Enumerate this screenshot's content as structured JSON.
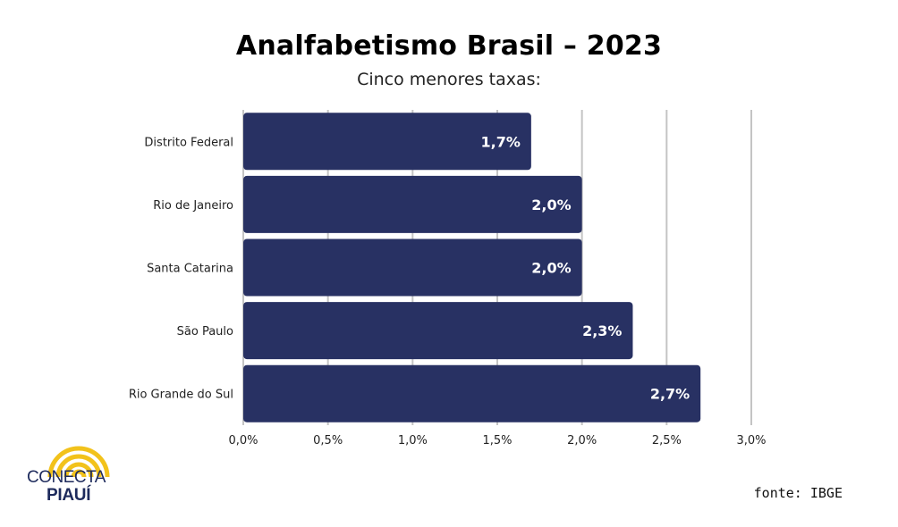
{
  "chart_data": {
    "type": "bar",
    "orientation": "horizontal",
    "title": "Analfabetismo Brasil – 2023",
    "subtitle": "Cinco menores taxas:",
    "categories": [
      "Distrito Federal",
      "Rio de Janeiro",
      "Santa Catarina",
      "São Paulo",
      "Rio Grande do Sul"
    ],
    "values": [
      1.7,
      2.0,
      2.0,
      2.3,
      2.7
    ],
    "value_labels": [
      "1,7%",
      "2,0%",
      "2,0%",
      "2,3%",
      "2,7%"
    ],
    "xlim": [
      0,
      3.0
    ],
    "xticks": [
      0,
      0.5,
      1.0,
      1.5,
      2.0,
      2.5,
      3.0
    ],
    "xtick_labels": [
      "0,0%",
      "0,5%",
      "1,0%",
      "1,5%",
      "2,0%",
      "2,5%",
      "3,0%"
    ],
    "grid": true,
    "colors": {
      "bar": "#283163",
      "grid": "#c4c4c4",
      "label_text": "#ffffff"
    }
  },
  "source": "fonte: IBGE",
  "logo": {
    "line1": "CONECTA",
    "line2": "PIAUÍ",
    "colors": {
      "arcs": "#f2c21b",
      "text": "#1d2a5c"
    }
  }
}
